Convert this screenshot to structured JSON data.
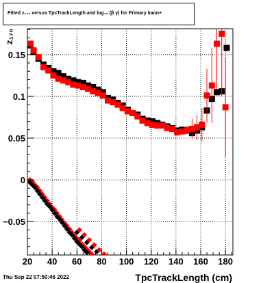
{
  "title": "Fitted  z₁₇₀  versus TpcTrackLength and log₁₀ (β  γ) for Primary kaon+",
  "footer": "Thu Sep 22 07:50:46 2022",
  "chart_data": {
    "type": "scatter",
    "title": "Fitted  z₁₇₀  versus TpcTrackLength and log₁₀ (β  γ) for Primary kaon+",
    "xlabel": "TpcTrackLength (cm)",
    "ylabel": "z₁₇₀",
    "xlim": [
      20,
      186
    ],
    "ylim": [
      -0.09,
      0.181
    ],
    "x_ticks": [
      20,
      40,
      60,
      80,
      100,
      120,
      140,
      160,
      180
    ],
    "y_ticks": [
      -0.05,
      0,
      0.05,
      0.1,
      0.15
    ],
    "y_tick_labels": [
      "−0.05",
      "0",
      "0.05",
      "0.1",
      "0.15"
    ],
    "grid": true,
    "colors": {
      "black_series": "#000000",
      "red_series": "#ff0000"
    },
    "series": [
      {
        "marker": "square",
        "color": "#000000",
        "points": [
          [
            22.5,
            0.161
          ],
          [
            25,
            0.153
          ],
          [
            29,
            0.145
          ],
          [
            33,
            0.138
          ],
          [
            37,
            0.134
          ],
          [
            41,
            0.13
          ],
          [
            45,
            0.128
          ],
          [
            49,
            0.124
          ],
          [
            53,
            0.121
          ],
          [
            57,
            0.119
          ],
          [
            61,
            0.117
          ],
          [
            65,
            0.116
          ],
          [
            69,
            0.113
          ],
          [
            73,
            0.111
          ],
          [
            77,
            0.108
          ],
          [
            81,
            0.105
          ],
          [
            85,
            0.098
          ],
          [
            89,
            0.096
          ],
          [
            93,
            0.092
          ],
          [
            97,
            0.089
          ],
          [
            101,
            0.084
          ],
          [
            105,
            0.08
          ],
          [
            109,
            0.078
          ],
          [
            113,
            0.073
          ],
          [
            117,
            0.071
          ],
          [
            121,
            0.07
          ],
          [
            125,
            0.068
          ],
          [
            129,
            0.066
          ],
          [
            133,
            0.064
          ],
          [
            137,
            0.062
          ],
          [
            141,
            0.059
          ],
          [
            145,
            0.06
          ],
          [
            149,
            0.059
          ],
          [
            153,
            0.056
          ],
          [
            157,
            0.059
          ],
          [
            161,
            0.063
          ],
          [
            165,
            0.083
          ],
          [
            169,
            0.097
          ],
          [
            173,
            0.105
          ],
          [
            177,
            0.106
          ],
          [
            181,
            0.158
          ]
        ]
      },
      {
        "marker": "square",
        "color": "#ff0000",
        "points": [
          [
            22.5,
            0.163
          ],
          [
            25,
            0.155
          ],
          [
            29,
            0.147
          ],
          [
            33,
            0.135
          ],
          [
            37,
            0.131
          ],
          [
            41,
            0.125
          ],
          [
            45,
            0.121
          ],
          [
            49,
            0.119
          ],
          [
            53,
            0.117
          ],
          [
            57,
            0.114
          ],
          [
            61,
            0.113
          ],
          [
            65,
            0.111
          ],
          [
            69,
            0.109
          ],
          [
            73,
            0.106
          ],
          [
            77,
            0.104
          ],
          [
            81,
            0.101
          ],
          [
            85,
            0.095
          ],
          [
            89,
            0.093
          ],
          [
            93,
            0.09
          ],
          [
            97,
            0.086
          ],
          [
            101,
            0.082
          ],
          [
            105,
            0.08
          ],
          [
            109,
            0.076
          ],
          [
            113,
            0.071
          ],
          [
            117,
            0.068
          ],
          [
            121,
            0.066
          ],
          [
            125,
            0.065
          ],
          [
            129,
            0.065
          ],
          [
            133,
            0.062
          ],
          [
            137,
            0.061
          ],
          [
            141,
            0.057
          ],
          [
            145,
            0.058
          ],
          [
            149,
            0.06
          ],
          [
            153,
            0.061
          ],
          [
            157,
            0.063
          ],
          [
            161,
            0.066
          ],
          [
            165,
            0.101
          ],
          [
            169,
            0.113
          ],
          [
            173,
            0.163
          ],
          [
            177,
            0.175
          ],
          [
            180,
            0.087
          ]
        ],
        "errors": [
          [
            153,
            0.012
          ],
          [
            157,
            0.015
          ],
          [
            161,
            0.02
          ],
          [
            165,
            0.032
          ],
          [
            169,
            0.045
          ],
          [
            173,
            0.055
          ],
          [
            177,
            0.075
          ],
          [
            180,
            0.06
          ]
        ]
      },
      {
        "marker": "diamond",
        "color": "#ff0000",
        "points": [
          [
            22,
            0.0
          ],
          [
            24,
            -0.002
          ],
          [
            26,
            -0.006
          ],
          [
            28,
            -0.009
          ],
          [
            30,
            -0.013
          ],
          [
            32,
            -0.017
          ],
          [
            34,
            -0.021
          ],
          [
            36,
            -0.025
          ],
          [
            38,
            -0.029
          ],
          [
            40,
            -0.033
          ],
          [
            42,
            -0.036
          ],
          [
            44,
            -0.04
          ],
          [
            46,
            -0.044
          ],
          [
            48,
            -0.048
          ],
          [
            50,
            -0.052
          ],
          [
            52,
            -0.055
          ],
          [
            54,
            -0.059
          ],
          [
            56,
            -0.063
          ],
          [
            58,
            -0.067
          ],
          [
            60,
            -0.07
          ],
          [
            62,
            -0.073
          ],
          [
            64,
            -0.077
          ],
          [
            66,
            -0.08
          ],
          [
            68,
            -0.083
          ],
          [
            70,
            -0.086
          ],
          [
            72,
            -0.089
          ]
        ]
      },
      {
        "marker": "diamond",
        "color": "#000000",
        "points": [
          [
            22,
            -0.003
          ],
          [
            24,
            -0.006
          ],
          [
            26,
            -0.009
          ],
          [
            28,
            -0.013
          ],
          [
            30,
            -0.017
          ],
          [
            32,
            -0.021
          ],
          [
            34,
            -0.025
          ],
          [
            36,
            -0.029
          ],
          [
            38,
            -0.032
          ],
          [
            40,
            -0.036
          ],
          [
            42,
            -0.04
          ],
          [
            44,
            -0.044
          ],
          [
            46,
            -0.047
          ],
          [
            48,
            -0.051
          ],
          [
            50,
            -0.055
          ],
          [
            52,
            -0.059
          ],
          [
            54,
            -0.063
          ],
          [
            56,
            -0.066
          ],
          [
            58,
            -0.07
          ],
          [
            60,
            -0.074
          ],
          [
            62,
            -0.077
          ],
          [
            64,
            -0.08
          ],
          [
            66,
            -0.084
          ],
          [
            68,
            -0.087
          ]
        ]
      },
      {
        "marker": "diamond",
        "color": "#000000",
        "points": [
          [
            60,
            -0.063
          ],
          [
            64,
            -0.069
          ],
          [
            68,
            -0.075
          ],
          [
            72,
            -0.081
          ],
          [
            76,
            -0.086
          ]
        ]
      },
      {
        "marker": "diamond",
        "color": "#ff0000",
        "points": [
          [
            62,
            -0.06
          ],
          [
            66,
            -0.066
          ],
          [
            70,
            -0.072
          ],
          [
            74,
            -0.078
          ],
          [
            78,
            -0.084
          ],
          [
            82,
            -0.089
          ]
        ]
      }
    ]
  }
}
